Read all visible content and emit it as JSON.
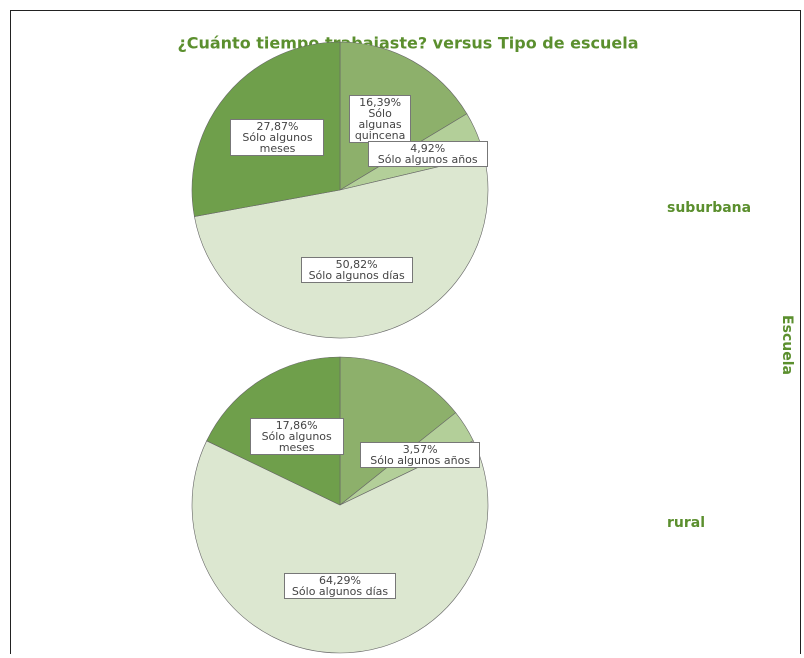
{
  "title": "¿Cuánto tiempo trabajaste? versus Tipo de escuela",
  "panel_axis_label": "Escuela",
  "chart_data": [
    {
      "type": "pie",
      "name": "suburbana",
      "categories": [
        "Sólo algunas quincena",
        "Sólo algunos años",
        "Sólo algunos días",
        "Sólo algunos meses"
      ],
      "values": [
        16.39,
        4.92,
        50.82,
        27.87
      ],
      "value_labels": [
        "16,39%",
        "4,92%",
        "50,82%",
        "27,87%"
      ],
      "colors": [
        "#8db06b",
        "#b3cf99",
        "#dce7d0",
        "#6f9f4b"
      ]
    },
    {
      "type": "pie",
      "name": "rural",
      "categories": [
        null,
        "Sólo algunos años",
        "Sólo algunos días",
        "Sólo algunos meses"
      ],
      "values": [
        14.28,
        3.57,
        64.29,
        17.86
      ],
      "value_labels": [
        null,
        "3,57%",
        "64,29%",
        "17,86%"
      ],
      "colors": [
        "#8db06b",
        "#b3cf99",
        "#dce7d0",
        "#6f9f4b"
      ]
    }
  ]
}
